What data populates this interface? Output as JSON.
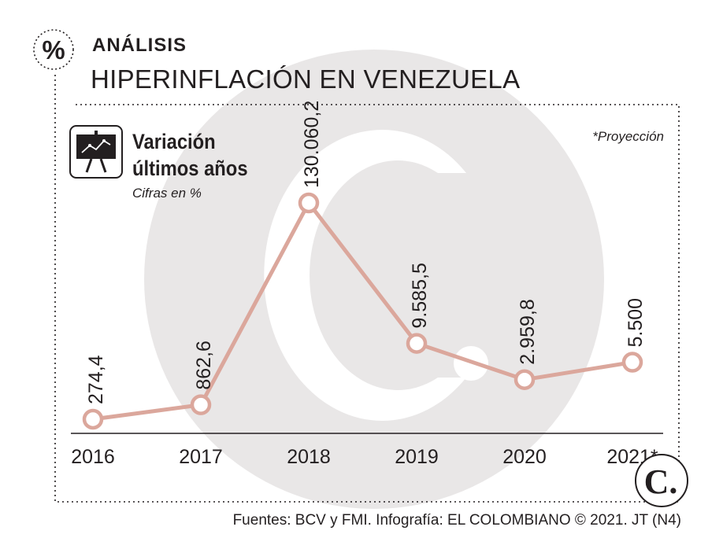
{
  "header": {
    "kicker": "ANÁLISIS",
    "title": "HIPERINFLACIÓN EN VENEZUELA",
    "percent_badge": "%"
  },
  "panel": {
    "subtitle_line1": "Variación",
    "subtitle_line2": "últimos años",
    "units": "Cifras en %",
    "note": "*Proyección"
  },
  "footer": {
    "source": "Fuentes: BCV y FMI. Infografía: EL COLOMBIANO © 2021. JT (N4)"
  },
  "brand": {
    "logo_letter": "C."
  },
  "colors": {
    "line": "#dba79c",
    "text": "#231f20",
    "watermark": "#e9e7e7"
  },
  "chart_data": {
    "type": "line",
    "title": "Variación últimos años",
    "ylabel": "Cifras en %",
    "categories": [
      "2016",
      "2017",
      "2018",
      "2019",
      "2020",
      "2021*"
    ],
    "values": [
      274.4,
      862.6,
      130060.2,
      9585.5,
      2959.8,
      5500
    ],
    "labels": [
      "274,4",
      "862,6",
      "130.060,2",
      "9.585,5",
      "2.959,8",
      "5.500"
    ],
    "scale": "non-linear (illustrative)",
    "grid": false,
    "legend": "none"
  }
}
